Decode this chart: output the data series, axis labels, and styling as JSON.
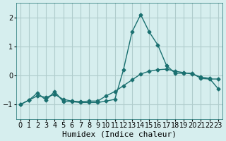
{
  "background_color": "#d6eeee",
  "grid_color": "#b0cccc",
  "line_color": "#1a7070",
  "xlabel": "Humidex (Indice chaleur)",
  "xlabel_fontsize": 8,
  "tick_fontsize": 7,
  "ylim": [
    -1.5,
    2.5
  ],
  "xlim": [
    -0.5,
    23.5
  ],
  "yticks": [
    -1,
    0,
    1,
    2
  ],
  "xticks": [
    0,
    1,
    2,
    3,
    4,
    5,
    6,
    7,
    8,
    9,
    10,
    11,
    12,
    13,
    14,
    15,
    16,
    17,
    18,
    19,
    20,
    21,
    22,
    23
  ],
  "line1_x": [
    0,
    1,
    2,
    3,
    4,
    5,
    6,
    7,
    8,
    9,
    10,
    11,
    12,
    13,
    14,
    15,
    16,
    17,
    18,
    19,
    20,
    21,
    22,
    23
  ],
  "line1_y": [
    -1.0,
    -0.85,
    -0.7,
    -0.75,
    -0.65,
    -0.82,
    -0.88,
    -0.9,
    -0.88,
    -0.88,
    -0.7,
    -0.55,
    -0.35,
    -0.15,
    0.05,
    0.15,
    0.2,
    0.22,
    0.15,
    0.1,
    0.05,
    -0.05,
    -0.1,
    -0.45
  ],
  "line2_x": [
    0,
    1,
    2,
    3,
    4,
    5,
    6,
    7,
    8,
    9,
    10,
    11,
    12,
    13,
    14,
    15,
    16,
    17,
    18,
    19,
    20,
    21,
    22,
    23
  ],
  "line2_y": [
    -1.0,
    -0.85,
    -0.6,
    -0.85,
    -0.55,
    -0.9,
    -0.9,
    -0.93,
    -0.93,
    -0.93,
    -0.88,
    -0.82,
    0.2,
    1.5,
    2.1,
    1.5,
    1.05,
    0.35,
    0.08,
    0.08,
    0.08,
    -0.1,
    -0.12,
    -0.12
  ]
}
